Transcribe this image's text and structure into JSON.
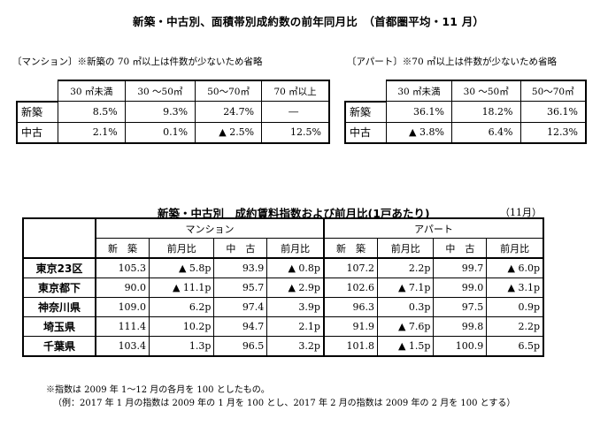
{
  "title": "新築・中古別、面積帯別成約数の前年同月比　（首都圏平均・11 月）",
  "mansion": {
    "label": "〔マンション〕",
    "note": "※新築の 70 ㎡以上は件数が少ないため省略",
    "columns": [
      "30 ㎡未満",
      "30 ～50㎡",
      "50～70㎡",
      "70 ㎡以上"
    ],
    "rows": [
      {
        "label": "新築",
        "cells": [
          "8.5%",
          "9.3%",
          "24.7%",
          "―"
        ]
      },
      {
        "label": "中古",
        "cells": [
          "2.1%",
          "0.1%",
          "▲ 2.5%",
          "12.5%"
        ]
      }
    ]
  },
  "apart": {
    "label": "〔アパート〕",
    "note": "※70 ㎡以上は件数が少ないため省略",
    "columns": [
      "30 ㎡未満",
      "30 ～50㎡",
      "50～70㎡"
    ],
    "rows": [
      {
        "label": "新築",
        "cells": [
          "36.1%",
          "18.2%",
          "36.1%"
        ]
      },
      {
        "label": "中古",
        "cells": [
          "▲ 3.8%",
          "6.4%",
          "12.3%"
        ]
      }
    ]
  },
  "index_table": {
    "title": "新築・中古別　成約賃料指数および前月比(1戸あたり)",
    "month": "（11月）",
    "group_headers": [
      "マンション",
      "アパート"
    ],
    "columns": [
      "新　築",
      "前月比",
      "中　古",
      "前月比",
      "新　築",
      "前月比",
      "中　古",
      "前月比"
    ],
    "rows": [
      {
        "label": "東京23区",
        "cells": [
          "105.3",
          "▲ 5.8p",
          "93.9",
          "▲ 0.8p",
          "107.2",
          "2.2p",
          "99.7",
          "▲ 6.0p"
        ]
      },
      {
        "label": "東京都下",
        "cells": [
          "90.0",
          "▲ 11.1p",
          "95.7",
          "▲ 2.9p",
          "102.6",
          "▲ 7.1p",
          "99.0",
          "▲ 3.1p"
        ]
      },
      {
        "label": "神奈川県",
        "cells": [
          "109.0",
          "6.2p",
          "97.4",
          "3.9p",
          "96.3",
          "0.3p",
          "97.5",
          "0.9p"
        ]
      },
      {
        "label": "埼玉県",
        "cells": [
          "111.4",
          "10.2p",
          "94.7",
          "2.1p",
          "91.9",
          "▲ 7.6p",
          "99.8",
          "2.2p"
        ]
      },
      {
        "label": "千葉県",
        "cells": [
          "103.4",
          "1.3p",
          "96.5",
          "3.2p",
          "101.8",
          "▲ 1.5p",
          "100.9",
          "6.5p"
        ]
      }
    ]
  },
  "footnotes": [
    "※指数は 2009 年 1～12 月の各月を 100 としたもの。",
    "（例：2017 年 1 月の指数は 2009 年の 1 月を 100 とし、2017 年 2 月の指数は 2009 年の 2 月を 100 とする）"
  ]
}
